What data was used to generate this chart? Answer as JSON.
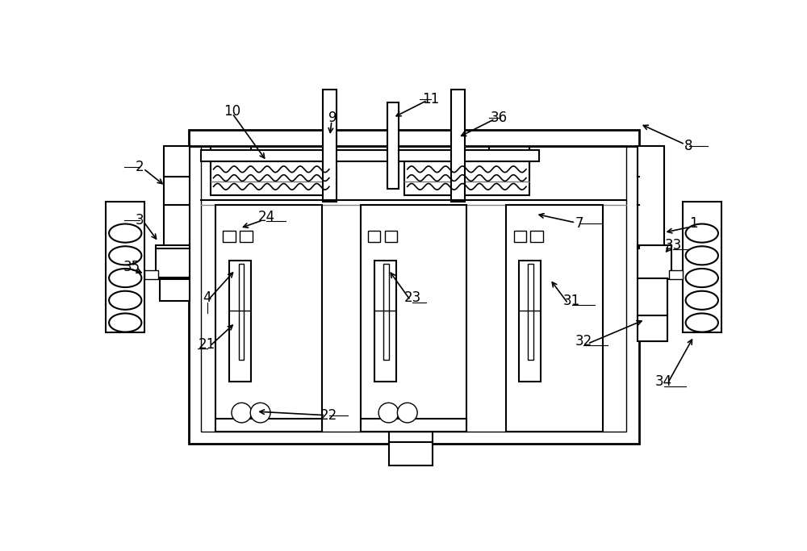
{
  "bg_color": "#ffffff",
  "lc": "#000000",
  "fig_width": 10.0,
  "fig_height": 6.83
}
